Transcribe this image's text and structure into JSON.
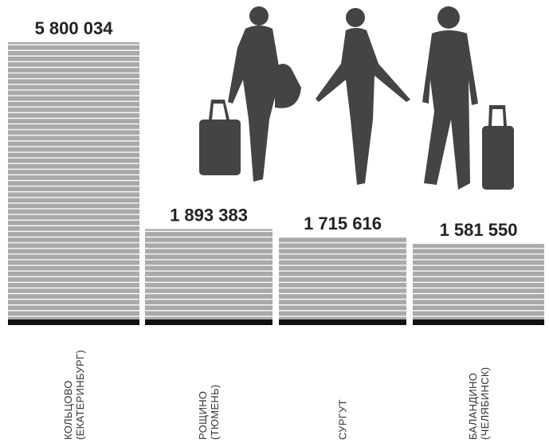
{
  "chart_data": {
    "type": "bar",
    "categories": [
      "КОЛЬЦОВО (ЕКАТЕРИНБУРГ)",
      "РОЩИНО (ТЮМЕНЬ)",
      "СУРГУТ",
      "БАЛАНДИНО (ЧЕЛЯБИНСК)"
    ],
    "values": [
      5800034,
      1893383,
      1715616,
      1581550
    ],
    "value_labels": [
      "5 800 034",
      "1 893 383",
      "1 715 616",
      "1 581 550"
    ],
    "color": "#a9a9a9"
  }
}
